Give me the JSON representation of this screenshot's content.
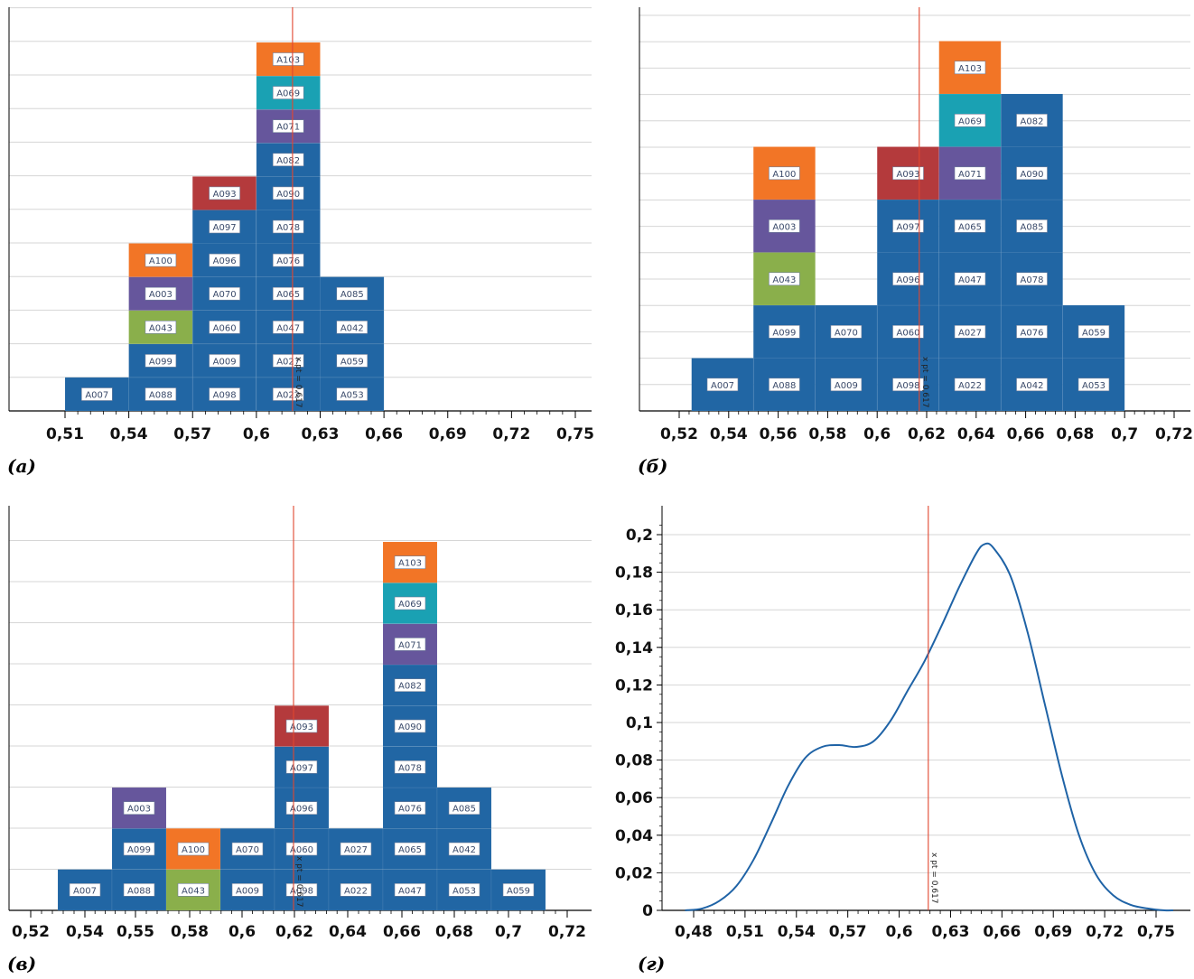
{
  "colors": {
    "blue": "#2166a4",
    "orange": "#f27526",
    "teal": "#1aa1b3",
    "purple": "#66569c",
    "red": "#b43a3c",
    "green": "#8aaf4b",
    "refline": "#e1462f",
    "curve": "#1f63a6",
    "grid": "#d6d6d6",
    "axis": "#000000",
    "label_text": "#3a4a6a"
  },
  "ref_label": "x pt = 0,617",
  "panels": [
    {
      "label": "(а)",
      "chart_data": {
        "type": "bar",
        "subtype": "stacked-unit-histogram",
        "reference_line": {
          "x": 0.617,
          "label": "x pt = 0,617"
        },
        "x_ticks": [
          "0,51",
          "0,54",
          "0,57",
          "0,6",
          "0,63",
          "0,66",
          "0,69",
          "0,72",
          "0,75"
        ],
        "xlim": [
          0.5,
          0.75
        ],
        "grid": true,
        "bins": [
          {
            "start": 0.51,
            "end": 0.54,
            "items": [
              {
                "id": "A007",
                "c": "blue"
              }
            ]
          },
          {
            "start": 0.54,
            "end": 0.57,
            "items": [
              {
                "id": "A088",
                "c": "blue"
              },
              {
                "id": "A099",
                "c": "blue"
              },
              {
                "id": "A043",
                "c": "green"
              },
              {
                "id": "A003",
                "c": "purple"
              },
              {
                "id": "A100",
                "c": "orange"
              }
            ]
          },
          {
            "start": 0.57,
            "end": 0.6,
            "items": [
              {
                "id": "A098",
                "c": "blue"
              },
              {
                "id": "A009",
                "c": "blue"
              },
              {
                "id": "A060",
                "c": "blue"
              },
              {
                "id": "A070",
                "c": "blue"
              },
              {
                "id": "A096",
                "c": "blue"
              },
              {
                "id": "A097",
                "c": "blue"
              },
              {
                "id": "A093",
                "c": "red"
              }
            ]
          },
          {
            "start": 0.6,
            "end": 0.63,
            "items": [
              {
                "id": "A022",
                "c": "blue"
              },
              {
                "id": "A027",
                "c": "blue"
              },
              {
                "id": "A047",
                "c": "blue"
              },
              {
                "id": "A065",
                "c": "blue"
              },
              {
                "id": "A076",
                "c": "blue"
              },
              {
                "id": "A078",
                "c": "blue"
              },
              {
                "id": "A090",
                "c": "blue"
              },
              {
                "id": "A082",
                "c": "blue"
              },
              {
                "id": "A071",
                "c": "purple"
              },
              {
                "id": "A069",
                "c": "teal"
              },
              {
                "id": "A103",
                "c": "orange"
              }
            ]
          },
          {
            "start": 0.63,
            "end": 0.66,
            "items": [
              {
                "id": "A053",
                "c": "blue"
              },
              {
                "id": "A059",
                "c": "blue"
              },
              {
                "id": "A042",
                "c": "blue"
              },
              {
                "id": "A085",
                "c": "blue"
              }
            ]
          }
        ]
      }
    },
    {
      "label": "(б)",
      "chart_data": {
        "type": "bar",
        "subtype": "stacked-unit-histogram",
        "reference_line": {
          "x": 0.617,
          "label": "x pt = 0,617"
        },
        "x_ticks": [
          "0,52",
          "0,54",
          "0,56",
          "0,58",
          "0,6",
          "0,62",
          "0,64",
          "0,66",
          "0,68",
          "0,7",
          "0,72"
        ],
        "xlim": [
          0.51,
          0.72
        ],
        "grid": true,
        "bins": [
          {
            "start": 0.525,
            "end": 0.55,
            "items": [
              {
                "id": "A007",
                "c": "blue"
              }
            ]
          },
          {
            "start": 0.55,
            "end": 0.575,
            "items": [
              {
                "id": "A088",
                "c": "blue"
              },
              {
                "id": "A099",
                "c": "blue"
              },
              {
                "id": "A043",
                "c": "green"
              },
              {
                "id": "A003",
                "c": "purple"
              },
              {
                "id": "A100",
                "c": "orange"
              }
            ]
          },
          {
            "start": 0.575,
            "end": 0.6,
            "items": [
              {
                "id": "A009",
                "c": "blue"
              },
              {
                "id": "A070",
                "c": "blue"
              }
            ]
          },
          {
            "start": 0.6,
            "end": 0.625,
            "items": [
              {
                "id": "A098",
                "c": "blue"
              },
              {
                "id": "A060",
                "c": "blue"
              },
              {
                "id": "A096",
                "c": "blue"
              },
              {
                "id": "A097",
                "c": "blue"
              },
              {
                "id": "A093",
                "c": "red"
              }
            ]
          },
          {
            "start": 0.625,
            "end": 0.65,
            "items": [
              {
                "id": "A022",
                "c": "blue"
              },
              {
                "id": "A027",
                "c": "blue"
              },
              {
                "id": "A047",
                "c": "blue"
              },
              {
                "id": "A065",
                "c": "blue"
              },
              {
                "id": "A071",
                "c": "purple"
              },
              {
                "id": "A069",
                "c": "teal"
              },
              {
                "id": "A103",
                "c": "orange"
              }
            ]
          },
          {
            "start": 0.65,
            "end": 0.675,
            "items": [
              {
                "id": "A042",
                "c": "blue"
              },
              {
                "id": "A076",
                "c": "blue"
              },
              {
                "id": "A078",
                "c": "blue"
              },
              {
                "id": "A085",
                "c": "blue"
              },
              {
                "id": "A090",
                "c": "blue"
              },
              {
                "id": "A082",
                "c": "blue"
              }
            ]
          },
          {
            "start": 0.675,
            "end": 0.7,
            "items": [
              {
                "id": "A053",
                "c": "blue"
              },
              {
                "id": "A059",
                "c": "blue"
              }
            ]
          }
        ]
      }
    },
    {
      "label": "(в)",
      "chart_data": {
        "type": "bar",
        "subtype": "stacked-unit-histogram",
        "reference_line": {
          "x": 0.617,
          "label": "x pt = 0,617"
        },
        "x_ticks": [
          "0,52",
          "0,54",
          "0,55",
          "0,58",
          "0,6",
          "0,62",
          "0,64",
          "0,66",
          "0,68",
          "0,7",
          "0,72"
        ],
        "xlim": [
          0.52,
          0.72
        ],
        "grid": true,
        "bins": [
          {
            "start": 0.53,
            "end": 0.55,
            "items": [
              {
                "id": "A007",
                "c": "blue"
              }
            ]
          },
          {
            "start": 0.55,
            "end": 0.57,
            "items": [
              {
                "id": "A088",
                "c": "blue"
              },
              {
                "id": "A099",
                "c": "blue"
              },
              {
                "id": "A003",
                "c": "purple"
              }
            ]
          },
          {
            "start": 0.57,
            "end": 0.59,
            "items": [
              {
                "id": "A043",
                "c": "green"
              },
              {
                "id": "A100",
                "c": "orange"
              }
            ]
          },
          {
            "start": 0.59,
            "end": 0.61,
            "items": [
              {
                "id": "A009",
                "c": "blue"
              },
              {
                "id": "A070",
                "c": "blue"
              }
            ]
          },
          {
            "start": 0.61,
            "end": 0.63,
            "items": [
              {
                "id": "A098",
                "c": "blue"
              },
              {
                "id": "A060",
                "c": "blue"
              },
              {
                "id": "A096",
                "c": "blue"
              },
              {
                "id": "A097",
                "c": "blue"
              },
              {
                "id": "A093",
                "c": "red"
              }
            ]
          },
          {
            "start": 0.63,
            "end": 0.65,
            "items": [
              {
                "id": "A022",
                "c": "blue"
              },
              {
                "id": "A027",
                "c": "blue"
              }
            ]
          },
          {
            "start": 0.65,
            "end": 0.67,
            "items": [
              {
                "id": "A047",
                "c": "blue"
              },
              {
                "id": "A065",
                "c": "blue"
              },
              {
                "id": "A076",
                "c": "blue"
              },
              {
                "id": "A078",
                "c": "blue"
              },
              {
                "id": "A090",
                "c": "blue"
              },
              {
                "id": "A082",
                "c": "blue"
              },
              {
                "id": "A071",
                "c": "purple"
              },
              {
                "id": "A069",
                "c": "teal"
              },
              {
                "id": "A103",
                "c": "orange"
              }
            ]
          },
          {
            "start": 0.67,
            "end": 0.69,
            "items": [
              {
                "id": "A053",
                "c": "blue"
              },
              {
                "id": "A042",
                "c": "blue"
              },
              {
                "id": "A085",
                "c": "blue"
              }
            ]
          },
          {
            "start": 0.69,
            "end": 0.71,
            "items": [
              {
                "id": "A059",
                "c": "blue"
              }
            ]
          }
        ]
      }
    },
    {
      "label": "(г)",
      "chart_data": {
        "type": "line",
        "subtype": "density",
        "reference_line": {
          "x": 0.617,
          "label": "x pt = 0,617"
        },
        "x_ticks": [
          "0,48",
          "0,51",
          "0,54",
          "0,57",
          "0,6",
          "0,63",
          "0,66",
          "0,69",
          "0,72",
          "0,75"
        ],
        "y_ticks": [
          "0",
          "0,02",
          "0,04",
          "0,06",
          "0,08",
          "0,1",
          "0,12",
          "0,14",
          "0,16",
          "0,18",
          "0,2"
        ],
        "xlim": [
          0.46,
          0.765
        ],
        "ylim": [
          0,
          0.215
        ],
        "grid": true,
        "series": [
          {
            "x": [
              0.475,
              0.485,
              0.495,
              0.505,
              0.515,
              0.525,
              0.535,
              0.545,
              0.555,
              0.565,
              0.575,
              0.585,
              0.595,
              0.605,
              0.615,
              0.625,
              0.635,
              0.645,
              0.65,
              0.655,
              0.665,
              0.675,
              0.685,
              0.695,
              0.705,
              0.715,
              0.725,
              0.735,
              0.745,
              0.755,
              0.76
            ],
            "y": [
              0.0,
              0.001,
              0.005,
              0.013,
              0.027,
              0.046,
              0.066,
              0.081,
              0.087,
              0.088,
              0.087,
              0.09,
              0.101,
              0.117,
              0.133,
              0.152,
              0.172,
              0.19,
              0.195,
              0.193,
              0.178,
              0.148,
              0.11,
              0.072,
              0.04,
              0.019,
              0.008,
              0.003,
              0.001,
              0.0,
              0.0
            ]
          }
        ]
      }
    }
  ]
}
